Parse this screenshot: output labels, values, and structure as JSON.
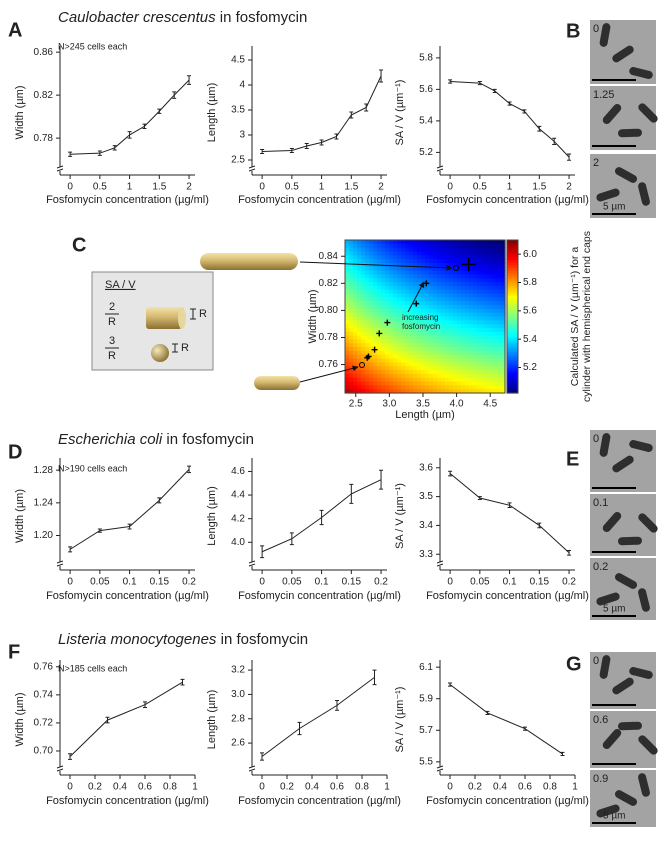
{
  "sections": [
    {
      "letter": "A",
      "organism": "Caulobacter crescentus",
      "suffix": "in fosfomycin",
      "note": "N>245 cells each"
    },
    {
      "letter": "D",
      "organism": "Escherichia coli",
      "suffix": "in fosfomycin",
      "note": "N>190 cells each"
    },
    {
      "letter": "F",
      "organism": "Listeria monocytogenes",
      "suffix": "in fosfomycin",
      "note": "N>185 cells each"
    }
  ],
  "diagram": {
    "letter": "C",
    "title": "SA / V",
    "cyl_num": "2",
    "cyl_den": "R",
    "cyl_dim": "R",
    "sph_num": "3",
    "sph_den": "R",
    "sph_dim": "R"
  },
  "micrographs": [
    {
      "letter": "B",
      "labels": [
        "0",
        "1.25",
        "2"
      ],
      "scale": "5 µm"
    },
    {
      "letter": "E",
      "labels": [
        "0",
        "0.1",
        "0.2"
      ],
      "scale": "5 µm"
    },
    {
      "letter": "G",
      "labels": [
        "0",
        "0.6",
        "0.9"
      ],
      "scale": "5 µm"
    }
  ],
  "chart_data": [
    {
      "type": "line",
      "xlabel": "Fosfomycin concentration (µg/ml)",
      "ylabel": "Width (µm)",
      "x": [
        0,
        0.5,
        0.75,
        1,
        1.25,
        1.5,
        1.75,
        2
      ],
      "values": [
        0.765,
        0.766,
        0.771,
        0.783,
        0.791,
        0.805,
        0.82,
        0.834
      ],
      "errors": [
        0.002,
        0.002,
        0.002,
        0.003,
        0.002,
        0.002,
        0.003,
        0.004
      ],
      "xlim": [
        -0.17,
        2.1
      ],
      "ylim": [
        0.755,
        0.862
      ],
      "xticks": [
        0,
        0.5,
        1,
        1.5,
        2
      ],
      "yticks": [
        0.78,
        0.82,
        0.86
      ],
      "color": "#222222"
    },
    {
      "type": "line",
      "xlabel": "Fosfomycin concentration (µg/ml)",
      "ylabel": "Length (µm)",
      "x": [
        0,
        0.5,
        0.75,
        1,
        1.25,
        1.5,
        1.75,
        2
      ],
      "values": [
        2.67,
        2.69,
        2.78,
        2.85,
        2.97,
        3.4,
        3.55,
        4.18
      ],
      "errors": [
        0.04,
        0.04,
        0.05,
        0.05,
        0.05,
        0.06,
        0.07,
        0.12
      ],
      "xlim": [
        -0.17,
        2.1
      ],
      "ylim": [
        2.4,
        4.7
      ],
      "xticks": [
        0,
        0.5,
        1,
        1.5,
        2
      ],
      "yticks": [
        2.5,
        3,
        3.5,
        4,
        4.5
      ],
      "color": "#222222"
    },
    {
      "type": "line",
      "xlabel": "Fosfomycin concentration (µg/ml)",
      "ylabel": "SA / V (µm⁻¹)",
      "x": [
        0,
        0.5,
        0.75,
        1,
        1.25,
        1.5,
        1.75,
        2
      ],
      "values": [
        5.65,
        5.64,
        5.59,
        5.51,
        5.46,
        5.35,
        5.27,
        5.17
      ],
      "errors": [
        0.01,
        0.01,
        0.01,
        0.01,
        0.01,
        0.015,
        0.02,
        0.02
      ],
      "xlim": [
        -0.17,
        2.1
      ],
      "ylim": [
        5.12,
        5.85
      ],
      "xticks": [
        0,
        0.5,
        1,
        1.5,
        2
      ],
      "yticks": [
        5.2,
        5.4,
        5.6,
        5.8
      ],
      "color": "#222222"
    },
    {
      "type": "scatter",
      "xlabel": "Length (µm)",
      "ylabel": "Width (µm)",
      "x": [
        2.67,
        2.69,
        2.78,
        2.85,
        2.97,
        3.4,
        3.55,
        4.18
      ],
      "values": [
        0.765,
        0.766,
        0.771,
        0.783,
        0.791,
        0.805,
        0.82,
        0.834
      ],
      "xlim": [
        2.34,
        4.72
      ],
      "ylim": [
        0.739,
        0.852
      ],
      "xticks": [
        {
          "value": 2.5,
          "label": "2.5"
        },
        {
          "value": 3,
          "label": "3.0"
        },
        {
          "value": 3.5,
          "label": "3.5"
        },
        {
          "value": 4,
          "label": "4.0"
        },
        {
          "value": 4.5,
          "label": "4.5"
        }
      ],
      "yticks": [
        0.76,
        0.78,
        {
          "value": 0.8,
          "label": "0.80"
        },
        0.82,
        0.84
      ],
      "annotation": [
        "increasing",
        "fosfomycin"
      ],
      "color": "#000000",
      "colorbar": {
        "label": [
          "Calculated SA / V (µm⁻¹) for a",
          "cylinder with hemispherical end caps"
        ],
        "lim": [
          5.02,
          6.1
        ],
        "ticks": [
          5.2,
          5.4,
          5.6,
          5.8,
          {
            "value": 6,
            "label": "6.0"
          }
        ]
      }
    },
    {
      "type": "line",
      "xlabel": "Fosfomycin concentration (µg/ml)",
      "ylabel": "Width (µm)",
      "x": [
        0,
        0.05,
        0.1,
        0.15,
        0.2
      ],
      "values": [
        1.183,
        1.206,
        1.211,
        1.243,
        1.281
      ],
      "errors": [
        0.003,
        0.002,
        0.003,
        0.003,
        0.004
      ],
      "xlim": [
        -0.017,
        0.21
      ],
      "ylim": [
        1.17,
        1.29
      ],
      "xticks": [
        0,
        0.05,
        0.1,
        0.15,
        0.2
      ],
      "yticks": [
        {
          "value": 1.2,
          "label": "1.20"
        },
        1.24,
        1.28
      ],
      "color": "#222222"
    },
    {
      "type": "line",
      "xlabel": "Fosfomycin concentration (µg/ml)",
      "ylabel": "Length (µm)",
      "x": [
        0,
        0.05,
        0.1,
        0.15,
        0.2
      ],
      "values": [
        3.92,
        4.03,
        4.21,
        4.41,
        4.53
      ],
      "errors": [
        0.05,
        0.05,
        0.06,
        0.08,
        0.08
      ],
      "xlim": [
        -0.017,
        0.21
      ],
      "ylim": [
        3.85,
        4.68
      ],
      "xticks": [
        0,
        0.05,
        0.1,
        0.15,
        0.2
      ],
      "yticks": [
        {
          "value": 4,
          "label": "4.0"
        },
        4.2,
        4.4,
        4.6
      ],
      "color": "#222222"
    },
    {
      "type": "line",
      "xlabel": "Fosfomycin concentration (µg/ml)",
      "ylabel": "SA / V (µm⁻¹)",
      "x": [
        0,
        0.05,
        0.1,
        0.15,
        0.2
      ],
      "values": [
        3.58,
        3.495,
        3.47,
        3.4,
        3.305
      ],
      "errors": [
        0.008,
        0.005,
        0.008,
        0.008,
        0.008
      ],
      "xlim": [
        -0.017,
        0.21
      ],
      "ylim": [
        3.28,
        3.62
      ],
      "xticks": [
        0,
        0.05,
        0.1,
        0.15,
        0.2
      ],
      "yticks": [
        3.3,
        3.4,
        3.5,
        3.6
      ],
      "color": "#222222"
    },
    {
      "type": "line",
      "xlabel": "Fosfomycin concentration (µg/ml)",
      "ylabel": "Width (µm)",
      "x": [
        0,
        0.3,
        0.6,
        0.9
      ],
      "values": [
        0.696,
        0.722,
        0.733,
        0.749
      ],
      "errors": [
        0.002,
        0.002,
        0.002,
        0.002
      ],
      "xlim": [
        -0.08,
        1.0
      ],
      "ylim": [
        0.69,
        0.762
      ],
      "xticks": [
        0,
        0.2,
        0.4,
        0.6,
        0.8,
        1
      ],
      "yticks": [
        {
          "value": 0.7,
          "label": "0.70"
        },
        0.72,
        0.74,
        0.76
      ],
      "color": "#222222"
    },
    {
      "type": "line",
      "xlabel": "Fosfomycin concentration (µg/ml)",
      "ylabel": "Length (µm)",
      "x": [
        0,
        0.3,
        0.6,
        0.9
      ],
      "values": [
        2.49,
        2.72,
        2.91,
        3.14
      ],
      "errors": [
        0.03,
        0.05,
        0.04,
        0.06
      ],
      "xlim": [
        -0.08,
        1.0
      ],
      "ylim": [
        2.42,
        3.25
      ],
      "xticks": [
        0,
        0.2,
        0.4,
        0.6,
        0.8,
        1
      ],
      "yticks": [
        2.6,
        2.8,
        {
          "value": 3,
          "label": "3.0"
        },
        3.2
      ],
      "color": "#222222"
    },
    {
      "type": "line",
      "xlabel": "Fosfomycin concentration (µg/ml)",
      "ylabel": "SA / V (µm⁻¹)",
      "x": [
        0,
        0.3,
        0.6,
        0.9
      ],
      "values": [
        5.99,
        5.81,
        5.71,
        5.55
      ],
      "errors": [
        0.01,
        0.01,
        0.01,
        0.01
      ],
      "xlim": [
        -0.08,
        1.0
      ],
      "ylim": [
        5.48,
        6.12
      ],
      "xticks": [
        0,
        0.2,
        0.4,
        0.6,
        0.8,
        1
      ],
      "yticks": [
        5.5,
        5.7,
        5.9,
        6.1
      ],
      "color": "#222222"
    }
  ]
}
